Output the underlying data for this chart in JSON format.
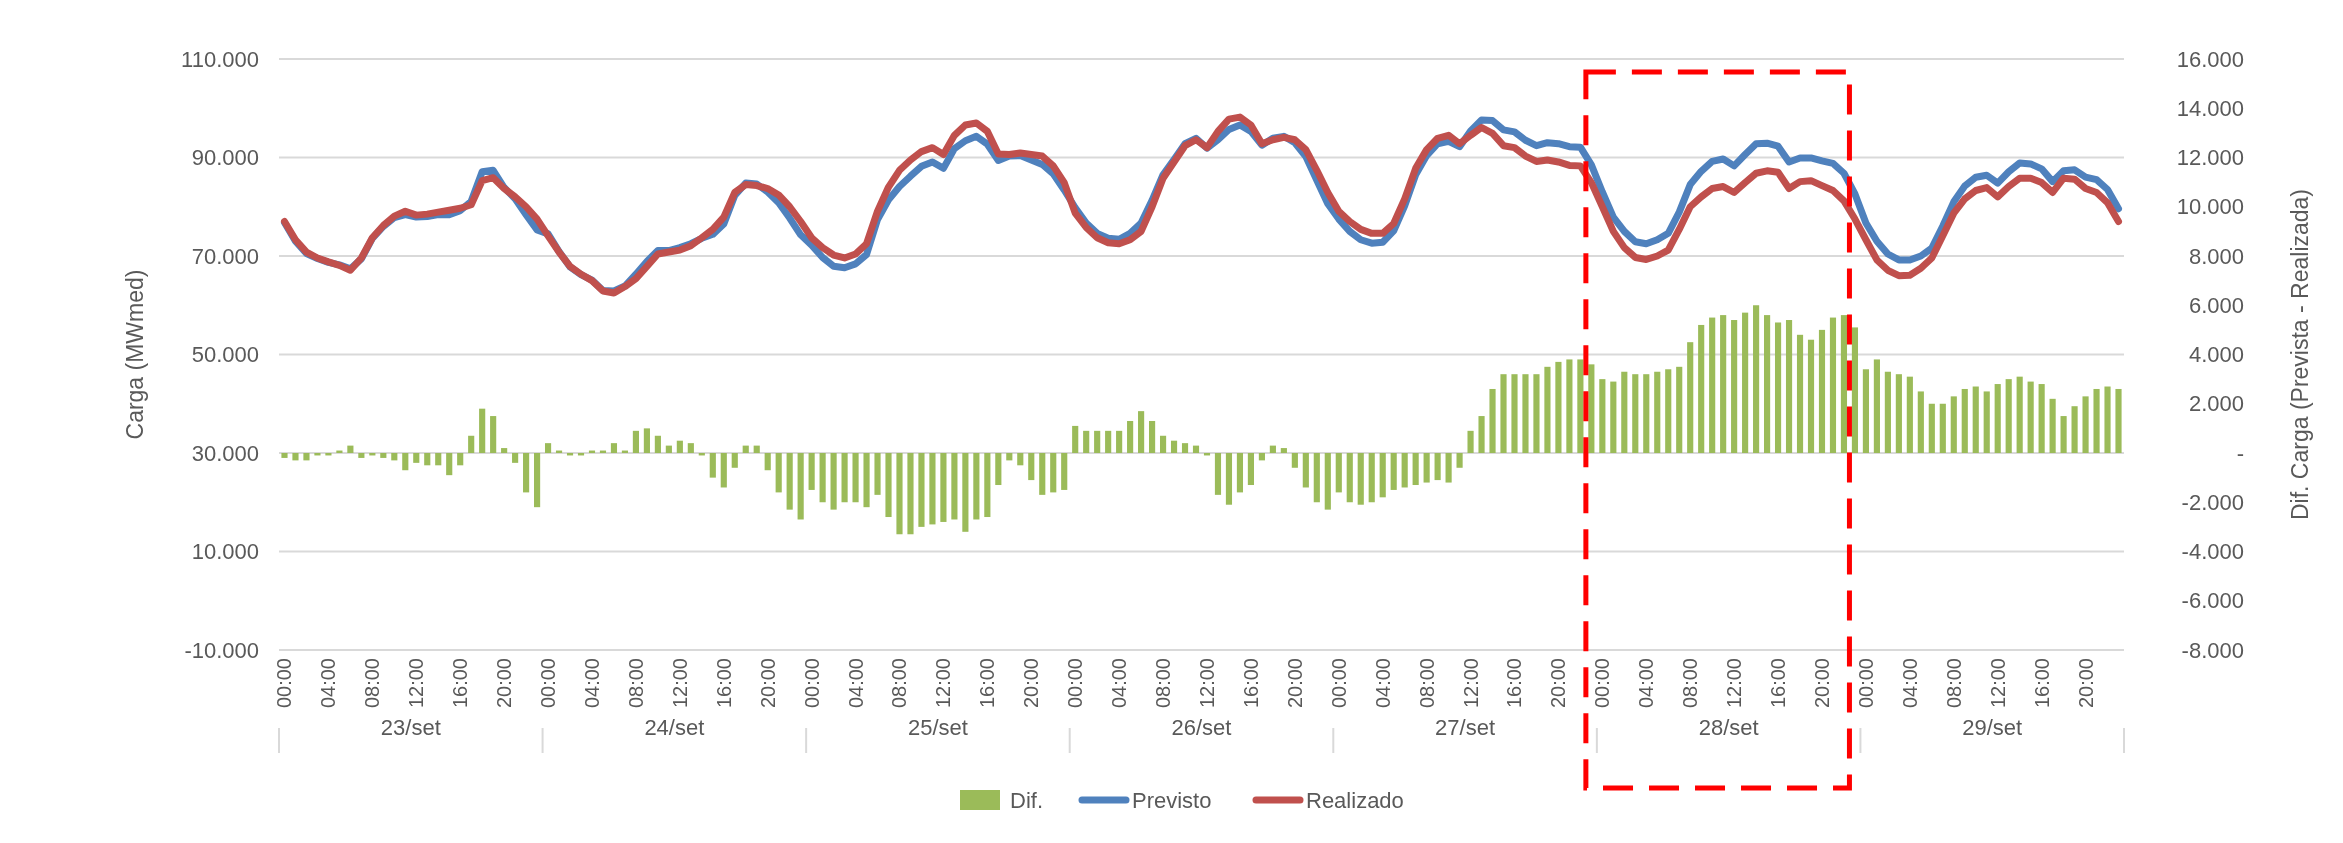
{
  "chart_data": {
    "type": "line",
    "ylabel": "Carga (MWmed)",
    "y2label": "Dif. Carga (Prevista - Realizada)",
    "legend": "bottom",
    "grid": "y",
    "ylim": [
      -10000,
      110000
    ],
    "yticks": [
      {
        "value": -10000,
        "label": "-10.000"
      },
      {
        "value": 10000,
        "label": "10.000"
      },
      {
        "value": 30000,
        "label": "30.000"
      },
      {
        "value": 50000,
        "label": "50.000"
      },
      {
        "value": 70000,
        "label": "70.000"
      },
      {
        "value": 90000,
        "label": "90.000"
      },
      {
        "value": 110000,
        "label": "110.000"
      }
    ],
    "y2lim": [
      -8000,
      16000
    ],
    "y2ticks": [
      {
        "value": -8000,
        "label": "-8.000"
      },
      {
        "value": -6000,
        "label": "-6.000"
      },
      {
        "value": -4000,
        "label": "-4.000"
      },
      {
        "value": -2000,
        "label": "-2.000"
      },
      {
        "value": 0,
        "label": "-"
      },
      {
        "value": 2000,
        "label": "2.000"
      },
      {
        "value": 4000,
        "label": "4.000"
      },
      {
        "value": 6000,
        "label": "6.000"
      },
      {
        "value": 8000,
        "label": "8.000"
      },
      {
        "value": 10000,
        "label": "10.000"
      },
      {
        "value": 12000,
        "label": "12.000"
      },
      {
        "value": 14000,
        "label": "14.000"
      },
      {
        "value": 16000,
        "label": "16.000"
      }
    ],
    "annotations": [
      "23/set",
      "24/set",
      "25/set",
      "26/set",
      "27/set",
      "28/set",
      "29/set"
    ],
    "categories": [
      "00:00",
      null,
      null,
      null,
      "04:00",
      null,
      null,
      null,
      "08:00",
      null,
      null,
      null,
      "12:00",
      null,
      null,
      null,
      "16:00",
      null,
      null,
      null,
      "20:00",
      null,
      null,
      null,
      "00:00",
      null,
      null,
      null,
      "04:00",
      null,
      null,
      null,
      "08:00",
      null,
      null,
      null,
      "12:00",
      null,
      null,
      null,
      "16:00",
      null,
      null,
      null,
      "20:00",
      null,
      null,
      null,
      "00:00",
      null,
      null,
      null,
      "04:00",
      null,
      null,
      null,
      "08:00",
      null,
      null,
      null,
      "12:00",
      null,
      null,
      null,
      "16:00",
      null,
      null,
      null,
      "20:00",
      null,
      null,
      null,
      "00:00",
      null,
      null,
      null,
      "04:00",
      null,
      null,
      null,
      "08:00",
      null,
      null,
      null,
      "12:00",
      null,
      null,
      null,
      "16:00",
      null,
      null,
      null,
      "20:00",
      null,
      null,
      null,
      "00:00",
      null,
      null,
      null,
      "04:00",
      null,
      null,
      null,
      "08:00",
      null,
      null,
      null,
      "12:00",
      null,
      null,
      null,
      "16:00",
      null,
      null,
      null,
      "20:00",
      null,
      null,
      null,
      "00:00",
      null,
      null,
      null,
      "04:00",
      null,
      null,
      null,
      "08:00",
      null,
      null,
      null,
      "12:00",
      null,
      null,
      null,
      "16:00",
      null,
      null,
      null,
      "20:00",
      null,
      null,
      null,
      "00:00",
      null,
      null,
      null,
      "04:00",
      null,
      null,
      null,
      "08:00",
      null,
      null,
      null,
      "12:00",
      null,
      null,
      null,
      "16:00",
      null,
      null,
      null,
      "20:00",
      null,
      null,
      null
    ],
    "series": [
      {
        "name": "Dif.",
        "type": "bar",
        "axis": "y2",
        "color": "#9bbb59",
        "values": [
          -200,
          -300,
          -300,
          -100,
          -100,
          100,
          300,
          -200,
          -100,
          -200,
          -300,
          -700,
          -400,
          -500,
          -500,
          -900,
          -500,
          700,
          1800,
          1500,
          200,
          -400,
          -1600,
          -2200,
          400,
          100,
          -100,
          -100,
          100,
          100,
          400,
          100,
          900,
          1000,
          700,
          300,
          500,
          400,
          -100,
          -1000,
          -1400,
          -600,
          300,
          300,
          -700,
          -1600,
          -2300,
          -2700,
          -1500,
          -2000,
          -2300,
          -2000,
          -2000,
          -2200,
          -1700,
          -2600,
          -3300,
          -3300,
          -3000,
          -2900,
          -2800,
          -2700,
          -3200,
          -2700,
          -2600,
          -1300,
          -300,
          -500,
          -1100,
          -1700,
          -1600,
          -1500,
          1100,
          900,
          900,
          900,
          900,
          1300,
          1700,
          1300,
          700,
          500,
          400,
          300,
          -100,
          -1700,
          -2100,
          -1600,
          -1300,
          -300,
          300,
          200,
          -600,
          -1400,
          -2000,
          -2300,
          -1600,
          -2000,
          -2100,
          -2000,
          -1800,
          -1500,
          -1400,
          -1300,
          -1200,
          -1100,
          -1200,
          -600,
          900,
          1500,
          2600,
          3200,
          3200,
          3200,
          3200,
          3500,
          3700,
          3800,
          3800,
          3600,
          3000,
          2900,
          3300,
          3200,
          3200,
          3300,
          3400,
          3500,
          4500,
          5200,
          5500,
          5600,
          5400,
          5700,
          6000,
          5600,
          5300,
          5400,
          4800,
          4600,
          5000,
          5500,
          5600,
          5100,
          3400,
          3800,
          3300,
          3200,
          3100,
          2500,
          2000,
          2000,
          2300,
          2600,
          2700,
          2500,
          2800,
          3000,
          3100,
          2900,
          2800,
          2200,
          1500,
          1900,
          2300,
          2600,
          2700,
          2600
        ]
      },
      {
        "name": "Previsto",
        "color": "#4f81bd",
        "values": [
          76800,
          73000,
          70500,
          69500,
          68700,
          68200,
          67400,
          69400,
          73600,
          76000,
          77800,
          78400,
          77900,
          78000,
          78400,
          78400,
          79200,
          81100,
          87100,
          87400,
          83900,
          81600,
          78400,
          75300,
          74500,
          70900,
          67800,
          66200,
          65100,
          63000,
          62900,
          63900,
          66300,
          68900,
          71100,
          71100,
          71700,
          72500,
          73600,
          74400,
          76500,
          82300,
          84800,
          84600,
          83000,
          80800,
          77700,
          74300,
          72200,
          69700,
          67900,
          67600,
          68400,
          70300,
          77400,
          81400,
          84100,
          86200,
          88200,
          89100,
          87800,
          91800,
          93400,
          94300,
          92700,
          89400,
          90300,
          90400,
          89500,
          88600,
          86700,
          83400,
          79800,
          76700,
          74600,
          73600,
          73400,
          74600,
          76700,
          81300,
          86500,
          89600,
          92800,
          93900,
          91900,
          93600,
          95700,
          96600,
          95300,
          92500,
          93900,
          94300,
          93000,
          90200,
          85400,
          80600,
          77500,
          75000,
          73300,
          72600,
          72800,
          75100,
          80200,
          86500,
          90400,
          92800,
          93300,
          92200,
          95400,
          97600,
          97500,
          95600,
          95200,
          93500,
          92400,
          93000,
          92800,
          92200,
          92100,
          88500,
          83000,
          77900,
          75000,
          72900,
          72500,
          73300,
          74600,
          78900,
          84500,
          87200,
          89200,
          89700,
          88300,
          90600,
          92800,
          92900,
          92300,
          89100,
          89900,
          89900,
          89300,
          88800,
          86800,
          82600,
          76700,
          73000,
          70400,
          69200,
          69200,
          70000,
          71600,
          76100,
          81000,
          84200,
          86000,
          86400,
          84800,
          87100,
          88900,
          88700,
          87700,
          85100,
          87300,
          87500,
          86000,
          85500,
          83500,
          79600
        ]
      },
      {
        "name": "Realizado",
        "color": "#c0504d",
        "values": [
          77000,
          73300,
          70800,
          69600,
          68800,
          68100,
          67100,
          69600,
          73700,
          76200,
          78100,
          79100,
          78300,
          78500,
          78900,
          79300,
          79700,
          80400,
          85300,
          85900,
          83700,
          82000,
          80000,
          77500,
          74100,
          70800,
          67900,
          66300,
          65000,
          62900,
          62500,
          63800,
          65400,
          67900,
          70400,
          70800,
          71200,
          72100,
          73700,
          75400,
          77900,
          82900,
          84500,
          84300,
          83700,
          82400,
          80000,
          77000,
          73700,
          71700,
          70200,
          69600,
          70400,
          72500,
          79100,
          84000,
          87400,
          89500,
          91200,
          92000,
          90600,
          94500,
          96600,
          97000,
          95300,
          90700,
          90600,
          90900,
          90600,
          90300,
          88300,
          84900,
          78700,
          75800,
          73700,
          72700,
          72500,
          73300,
          75000,
          80000,
          85800,
          89100,
          92400,
          93600,
          92000,
          95300,
          97800,
          98200,
          96600,
          92800,
          93600,
          94100,
          93600,
          91600,
          87400,
          82900,
          79100,
          77000,
          75400,
          74600,
          74600,
          76600,
          81600,
          87800,
          91600,
          93900,
          94500,
          92800,
          94500,
          96100,
          94900,
          92400,
          92000,
          90300,
          89200,
          89500,
          89100,
          88400,
          88300,
          84900,
          80000,
          75000,
          71700,
          69700,
          69300,
          70000,
          71200,
          75400,
          80000,
          82000,
          83700,
          84100,
          82900,
          84900,
          86800,
          87300,
          87000,
          83700,
          85100,
          85300,
          84300,
          83300,
          81200,
          77500,
          73300,
          69200,
          67100,
          66000,
          66100,
          67500,
          69600,
          74100,
          78700,
          81600,
          83300,
          83900,
          82000,
          84100,
          85800,
          85800,
          84900,
          82900,
          85800,
          85600,
          83700,
          82900,
          80800,
          77000
        ]
      }
    ]
  }
}
